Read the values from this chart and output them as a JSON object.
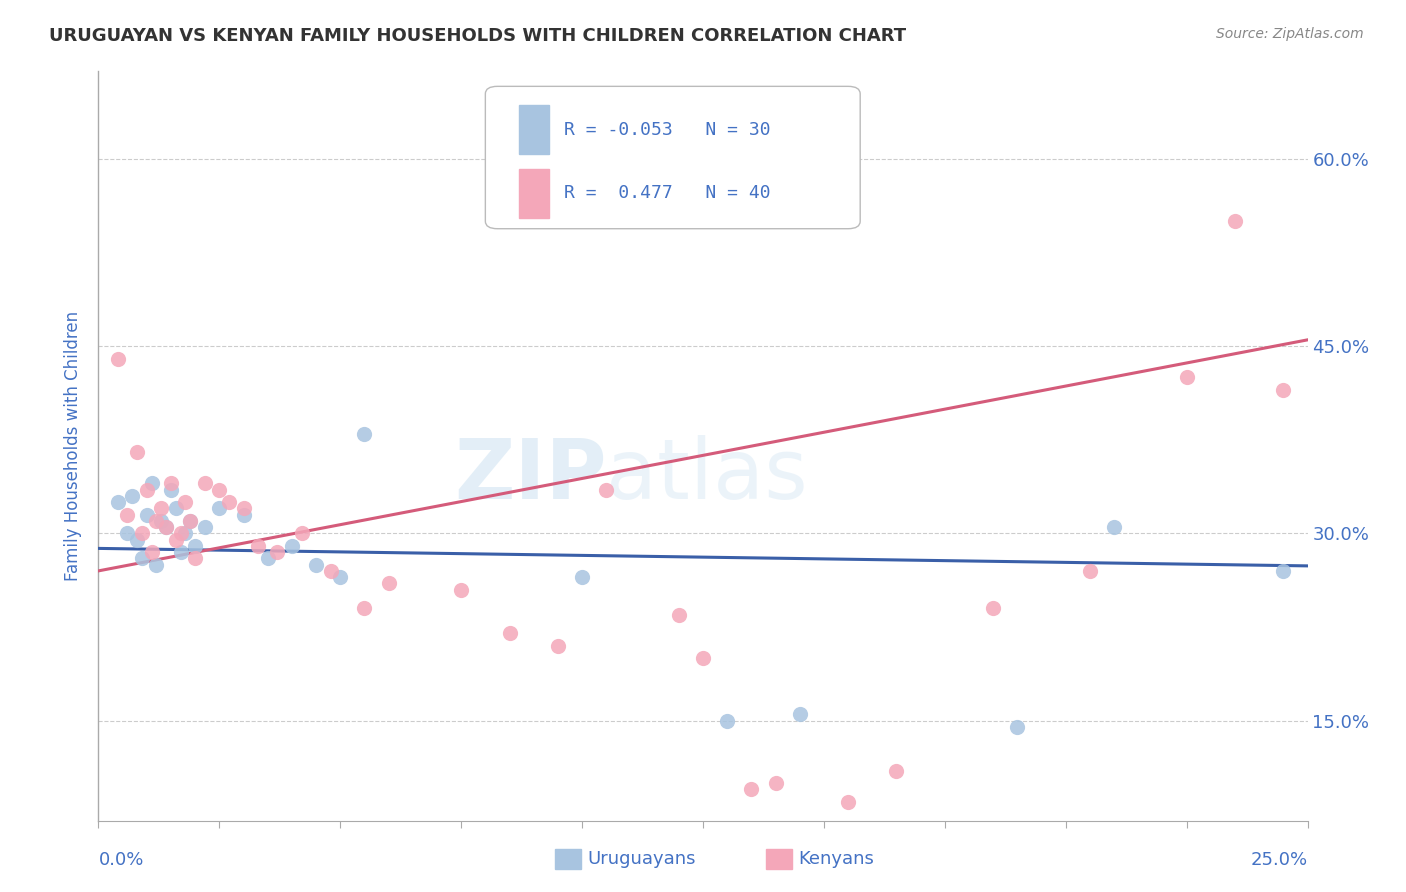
{
  "title": "URUGUAYAN VS KENYAN FAMILY HOUSEHOLDS WITH CHILDREN CORRELATION CHART",
  "source": "Source: ZipAtlas.com",
  "ylabel": "Family Households with Children",
  "xlim": [
    0.0,
    25.0
  ],
  "ylim": [
    7.0,
    67.0
  ],
  "yticks": [
    15.0,
    30.0,
    45.0,
    60.0
  ],
  "legend_R1": "-0.053",
  "legend_N1": "30",
  "legend_R2": "0.477",
  "legend_N2": "40",
  "uruguayan_color": "#a8c4e0",
  "kenyan_color": "#f4a7b9",
  "uruguayan_line_color": "#3a5fa8",
  "kenyan_line_color": "#d45b7a",
  "label_color": "#4472c4",
  "text_color": "#222222",
  "uruguayan_points": [
    [
      0.4,
      32.5
    ],
    [
      0.6,
      30.0
    ],
    [
      0.7,
      33.0
    ],
    [
      0.8,
      29.5
    ],
    [
      0.9,
      28.0
    ],
    [
      1.0,
      31.5
    ],
    [
      1.1,
      34.0
    ],
    [
      1.2,
      27.5
    ],
    [
      1.3,
      31.0
    ],
    [
      1.4,
      30.5
    ],
    [
      1.5,
      33.5
    ],
    [
      1.6,
      32.0
    ],
    [
      1.7,
      28.5
    ],
    [
      1.8,
      30.0
    ],
    [
      1.9,
      31.0
    ],
    [
      2.0,
      29.0
    ],
    [
      2.2,
      30.5
    ],
    [
      2.5,
      32.0
    ],
    [
      3.0,
      31.5
    ],
    [
      3.5,
      28.0
    ],
    [
      4.0,
      29.0
    ],
    [
      4.5,
      27.5
    ],
    [
      5.0,
      26.5
    ],
    [
      5.5,
      38.0
    ],
    [
      10.0,
      26.5
    ],
    [
      13.0,
      15.0
    ],
    [
      14.5,
      15.5
    ],
    [
      19.0,
      14.5
    ],
    [
      21.0,
      30.5
    ],
    [
      24.5,
      27.0
    ]
  ],
  "kenyan_points": [
    [
      0.4,
      44.0
    ],
    [
      0.6,
      31.5
    ],
    [
      0.8,
      36.5
    ],
    [
      0.9,
      30.0
    ],
    [
      1.0,
      33.5
    ],
    [
      1.1,
      28.5
    ],
    [
      1.2,
      31.0
    ],
    [
      1.3,
      32.0
    ],
    [
      1.4,
      30.5
    ],
    [
      1.5,
      34.0
    ],
    [
      1.6,
      29.5
    ],
    [
      1.7,
      30.0
    ],
    [
      1.8,
      32.5
    ],
    [
      1.9,
      31.0
    ],
    [
      2.0,
      28.0
    ],
    [
      2.2,
      34.0
    ],
    [
      2.5,
      33.5
    ],
    [
      2.7,
      32.5
    ],
    [
      3.0,
      32.0
    ],
    [
      3.3,
      29.0
    ],
    [
      3.7,
      28.5
    ],
    [
      4.2,
      30.0
    ],
    [
      4.8,
      27.0
    ],
    [
      5.5,
      24.0
    ],
    [
      6.0,
      26.0
    ],
    [
      7.5,
      25.5
    ],
    [
      8.5,
      22.0
    ],
    [
      9.5,
      21.0
    ],
    [
      10.5,
      33.5
    ],
    [
      12.0,
      23.5
    ],
    [
      12.5,
      20.0
    ],
    [
      13.5,
      9.5
    ],
    [
      14.0,
      10.0
    ],
    [
      15.5,
      8.5
    ],
    [
      16.5,
      11.0
    ],
    [
      18.5,
      24.0
    ],
    [
      20.5,
      27.0
    ],
    [
      22.5,
      42.5
    ],
    [
      23.5,
      55.0
    ],
    [
      24.5,
      41.5
    ]
  ],
  "watermark_zip": "ZIP",
  "watermark_atlas": "atlas",
  "background_color": "#ffffff",
  "grid_color": "#cccccc",
  "title_color": "#333333",
  "axis_label_color": "#4472c4"
}
